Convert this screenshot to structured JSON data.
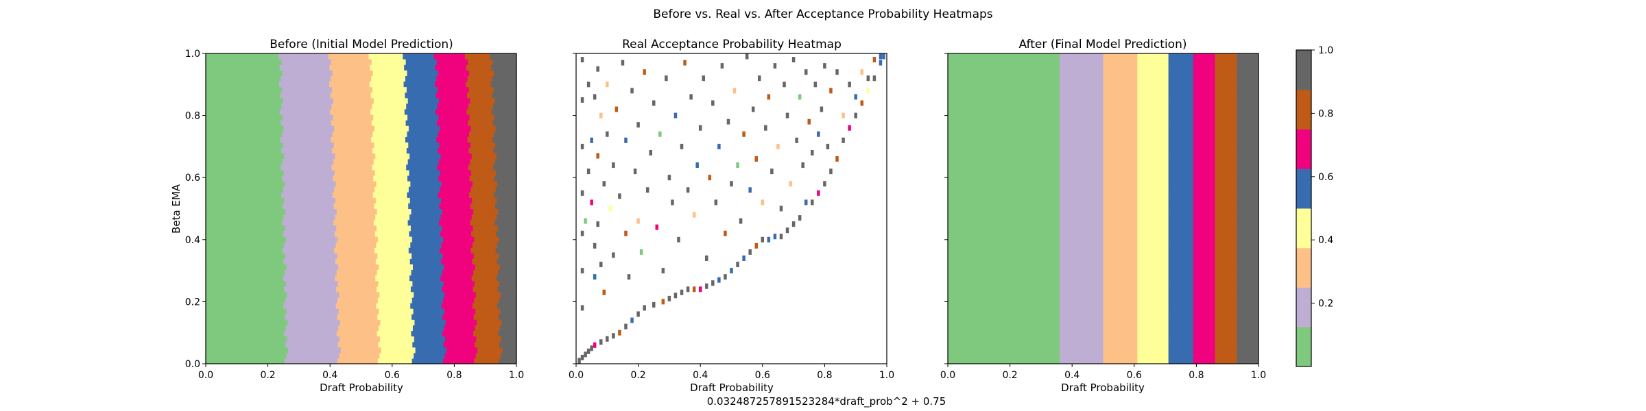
{
  "suptitle": "Before vs. Real vs. After Acceptance Probability Heatmaps",
  "footer": "0.032487257891523284*draft_prob^2 + 0.75",
  "colors": {
    "cmap": [
      "#7fc97f",
      "#beaed4",
      "#fdc086",
      "#ffff99",
      "#386cb0",
      "#f0027f",
      "#bf5b17",
      "#666666"
    ],
    "axes": "#000000",
    "background": "#ffffff"
  },
  "colorbar": {
    "range": [
      0,
      1
    ],
    "ticks": [
      "0.2",
      "0.4",
      "0.6",
      "0.8",
      "1.0"
    ],
    "tick_values": [
      0.2,
      0.4,
      0.6,
      0.8,
      1.0
    ]
  },
  "chart_data": [
    {
      "type": "heatmap",
      "title": "Before (Initial Model Prediction)",
      "xlabel": "Draft Probability",
      "ylabel": "Beta EMA",
      "xlim": [
        0,
        1
      ],
      "ylim": [
        0,
        1
      ],
      "xticks": [
        "0.0",
        "0.2",
        "0.4",
        "0.6",
        "0.8",
        "1.0"
      ],
      "yticks": [
        "0.0",
        "0.2",
        "0.4",
        "0.6",
        "0.8",
        "1.0"
      ],
      "value_range": [
        0,
        1
      ],
      "band_boundaries_at_beta_0": [
        0.26,
        0.43,
        0.56,
        0.67,
        0.77,
        0.87,
        0.95
      ],
      "band_boundaries_at_beta_1": [
        0.24,
        0.4,
        0.53,
        0.64,
        0.74,
        0.84,
        0.92
      ]
    },
    {
      "type": "heatmap",
      "title": "Real Acceptance Probability Heatmap",
      "xlabel": "Draft Probability",
      "ylabel": "",
      "xlim": [
        0,
        1
      ],
      "ylim": [
        0,
        1
      ],
      "xticks": [
        "0.0",
        "0.2",
        "0.4",
        "0.6",
        "0.8",
        "1.0"
      ],
      "yticks": [],
      "value_range": [
        0,
        1
      ],
      "boundary_curve": "0.032487257891523284*draft_prob^2 + 0.75",
      "points": [
        [
          0.01,
          0.01,
          1.0
        ],
        [
          0.02,
          0.02,
          1.0
        ],
        [
          0.03,
          0.03,
          1.0
        ],
        [
          0.04,
          0.04,
          1.0
        ],
        [
          0.05,
          0.05,
          0.95
        ],
        [
          0.06,
          0.06,
          0.7
        ],
        [
          0.08,
          0.07,
          1.0
        ],
        [
          0.1,
          0.08,
          0.9
        ],
        [
          0.12,
          0.09,
          1.0
        ],
        [
          0.14,
          0.1,
          0.85
        ],
        [
          0.16,
          0.12,
          1.0
        ],
        [
          0.18,
          0.14,
          0.5
        ],
        [
          0.2,
          0.16,
          1.0
        ],
        [
          0.22,
          0.18,
          0.9
        ],
        [
          0.25,
          0.19,
          1.0
        ],
        [
          0.28,
          0.2,
          0.85
        ],
        [
          0.3,
          0.21,
          1.0
        ],
        [
          0.32,
          0.22,
          0.95
        ],
        [
          0.34,
          0.23,
          0.9
        ],
        [
          0.36,
          0.24,
          1.0
        ],
        [
          0.38,
          0.24,
          0.85
        ],
        [
          0.4,
          0.24,
          0.7
        ],
        [
          0.42,
          0.25,
          1.0
        ],
        [
          0.44,
          0.26,
          0.9
        ],
        [
          0.46,
          0.27,
          0.6
        ],
        [
          0.48,
          0.28,
          1.0
        ],
        [
          0.5,
          0.3,
          0.5
        ],
        [
          0.52,
          0.32,
          0.9
        ],
        [
          0.54,
          0.34,
          0.6
        ],
        [
          0.56,
          0.36,
          1.0
        ],
        [
          0.58,
          0.38,
          0.85
        ],
        [
          0.6,
          0.4,
          1.0
        ],
        [
          0.62,
          0.4,
          0.6
        ],
        [
          0.64,
          0.41,
          0.5
        ],
        [
          0.66,
          0.41,
          1.0
        ],
        [
          0.68,
          0.43,
          1.0
        ],
        [
          0.7,
          0.45,
          1.0
        ],
        [
          0.72,
          0.47,
          1.0
        ],
        [
          0.74,
          0.52,
          0.6
        ],
        [
          0.76,
          0.52,
          1.0
        ],
        [
          0.78,
          0.55,
          0.7
        ],
        [
          0.8,
          0.58,
          1.0
        ],
        [
          0.82,
          0.62,
          1.0
        ],
        [
          0.84,
          0.66,
          0.85
        ],
        [
          0.86,
          0.72,
          0.9
        ],
        [
          0.88,
          0.76,
          0.7
        ],
        [
          0.9,
          0.8,
          1.0
        ],
        [
          0.92,
          0.84,
          0.85
        ],
        [
          0.94,
          0.88,
          0.45
        ],
        [
          0.96,
          0.92,
          0.9
        ],
        [
          0.98,
          0.97,
          0.6
        ],
        [
          0.99,
          0.99,
          0.6
        ],
        [
          0.02,
          0.98,
          1.0
        ],
        [
          0.02,
          0.85,
          1.0
        ],
        [
          0.02,
          0.7,
          1.0
        ],
        [
          0.02,
          0.55,
          1.0
        ],
        [
          0.02,
          0.42,
          1.0
        ],
        [
          0.02,
          0.3,
          1.0
        ],
        [
          0.02,
          0.18,
          1.0
        ],
        [
          0.03,
          0.46,
          0.1
        ],
        [
          0.04,
          0.62,
          1.0
        ],
        [
          0.04,
          0.9,
          1.0
        ],
        [
          0.05,
          0.72,
          0.6
        ],
        [
          0.05,
          0.52,
          0.7
        ],
        [
          0.06,
          0.86,
          1.0
        ],
        [
          0.06,
          0.38,
          1.0
        ],
        [
          0.06,
          0.28,
          0.5
        ],
        [
          0.07,
          0.95,
          1.0
        ],
        [
          0.07,
          0.67,
          0.85
        ],
        [
          0.07,
          0.45,
          1.0
        ],
        [
          0.08,
          0.8,
          0.3
        ],
        [
          0.08,
          0.32,
          1.0
        ],
        [
          0.09,
          0.58,
          0.9
        ],
        [
          0.09,
          0.23,
          0.85
        ],
        [
          0.1,
          0.9,
          0.3
        ],
        [
          0.1,
          0.74,
          1.0
        ],
        [
          0.11,
          0.5,
          0.45
        ],
        [
          0.12,
          0.64,
          1.0
        ],
        [
          0.12,
          0.35,
          0.95
        ],
        [
          0.13,
          0.82,
          0.85
        ],
        [
          0.14,
          0.54,
          0.9
        ],
        [
          0.15,
          0.97,
          1.0
        ],
        [
          0.16,
          0.72,
          0.5
        ],
        [
          0.16,
          0.42,
          0.85
        ],
        [
          0.17,
          0.28,
          1.0
        ],
        [
          0.18,
          0.88,
          1.0
        ],
        [
          0.19,
          0.62,
          1.0
        ],
        [
          0.2,
          0.46,
          0.35
        ],
        [
          0.2,
          0.77,
          1.0
        ],
        [
          0.21,
          0.36,
          0.1
        ],
        [
          0.22,
          0.94,
          0.85
        ],
        [
          0.23,
          0.56,
          1.0
        ],
        [
          0.24,
          0.68,
          0.9
        ],
        [
          0.25,
          0.84,
          1.0
        ],
        [
          0.26,
          0.44,
          0.7
        ],
        [
          0.27,
          0.74,
          0.1
        ],
        [
          0.28,
          0.3,
          1.0
        ],
        [
          0.29,
          0.92,
          1.0
        ],
        [
          0.3,
          0.6,
          1.0
        ],
        [
          0.31,
          0.52,
          0.9
        ],
        [
          0.32,
          0.8,
          0.6
        ],
        [
          0.33,
          0.4,
          1.0
        ],
        [
          0.34,
          0.7,
          1.0
        ],
        [
          0.35,
          0.97,
          0.85
        ],
        [
          0.36,
          0.56,
          1.0
        ],
        [
          0.37,
          0.86,
          1.0
        ],
        [
          0.38,
          0.48,
          0.35
        ],
        [
          0.39,
          0.64,
          0.5
        ],
        [
          0.4,
          0.76,
          1.0
        ],
        [
          0.41,
          0.92,
          0.9
        ],
        [
          0.42,
          0.34,
          1.0
        ],
        [
          0.43,
          0.6,
          0.85
        ],
        [
          0.44,
          0.84,
          1.0
        ],
        [
          0.45,
          0.52,
          1.0
        ],
        [
          0.46,
          0.7,
          0.6
        ],
        [
          0.47,
          0.96,
          1.0
        ],
        [
          0.48,
          0.42,
          0.85
        ],
        [
          0.49,
          0.78,
          1.0
        ],
        [
          0.5,
          0.58,
          0.9
        ],
        [
          0.51,
          0.88,
          0.3
        ],
        [
          0.52,
          0.64,
          0.1
        ],
        [
          0.53,
          0.46,
          1.0
        ],
        [
          0.54,
          0.74,
          0.85
        ],
        [
          0.55,
          0.99,
          1.0
        ],
        [
          0.56,
          0.56,
          0.6
        ],
        [
          0.57,
          0.82,
          1.0
        ],
        [
          0.58,
          0.66,
          0.85
        ],
        [
          0.59,
          0.92,
          1.0
        ],
        [
          0.6,
          0.52,
          0.3
        ],
        [
          0.61,
          0.76,
          1.0
        ],
        [
          0.62,
          0.86,
          0.85
        ],
        [
          0.63,
          0.62,
          1.0
        ],
        [
          0.64,
          0.96,
          1.0
        ],
        [
          0.65,
          0.7,
          0.35
        ],
        [
          0.66,
          0.5,
          1.0
        ],
        [
          0.67,
          0.9,
          1.0
        ],
        [
          0.68,
          0.8,
          0.9
        ],
        [
          0.69,
          0.58,
          0.35
        ],
        [
          0.7,
          0.98,
          1.0
        ],
        [
          0.71,
          0.72,
          1.0
        ],
        [
          0.72,
          0.86,
          0.1
        ],
        [
          0.73,
          0.64,
          1.0
        ],
        [
          0.74,
          0.94,
          1.0
        ],
        [
          0.75,
          0.78,
          0.85
        ],
        [
          0.76,
          0.68,
          1.0
        ],
        [
          0.77,
          0.9,
          1.0
        ],
        [
          0.78,
          0.74,
          0.5
        ],
        [
          0.79,
          0.82,
          1.0
        ],
        [
          0.8,
          0.96,
          1.0
        ],
        [
          0.81,
          0.7,
          1.0
        ],
        [
          0.82,
          0.88,
          0.85
        ],
        [
          0.84,
          0.94,
          1.0
        ],
        [
          0.86,
          0.8,
          0.3
        ],
        [
          0.88,
          0.9,
          1.0
        ],
        [
          0.9,
          0.86,
          0.6
        ],
        [
          0.92,
          0.94,
          0.35
        ],
        [
          0.94,
          0.92,
          1.0
        ],
        [
          0.96,
          0.98,
          0.85
        ],
        [
          0.98,
          0.99,
          0.55
        ]
      ]
    },
    {
      "type": "heatmap",
      "title": "After (Final Model Prediction)",
      "xlabel": "Draft Probability",
      "ylabel": "",
      "xlim": [
        0,
        1
      ],
      "ylim": [
        0,
        1
      ],
      "xticks": [
        "0.0",
        "0.2",
        "0.4",
        "0.6",
        "0.8",
        "1.0"
      ],
      "yticks": [],
      "value_range": [
        0,
        1
      ],
      "band_boundaries": [
        0.36,
        0.5,
        0.61,
        0.71,
        0.79,
        0.86,
        0.93
      ]
    }
  ]
}
